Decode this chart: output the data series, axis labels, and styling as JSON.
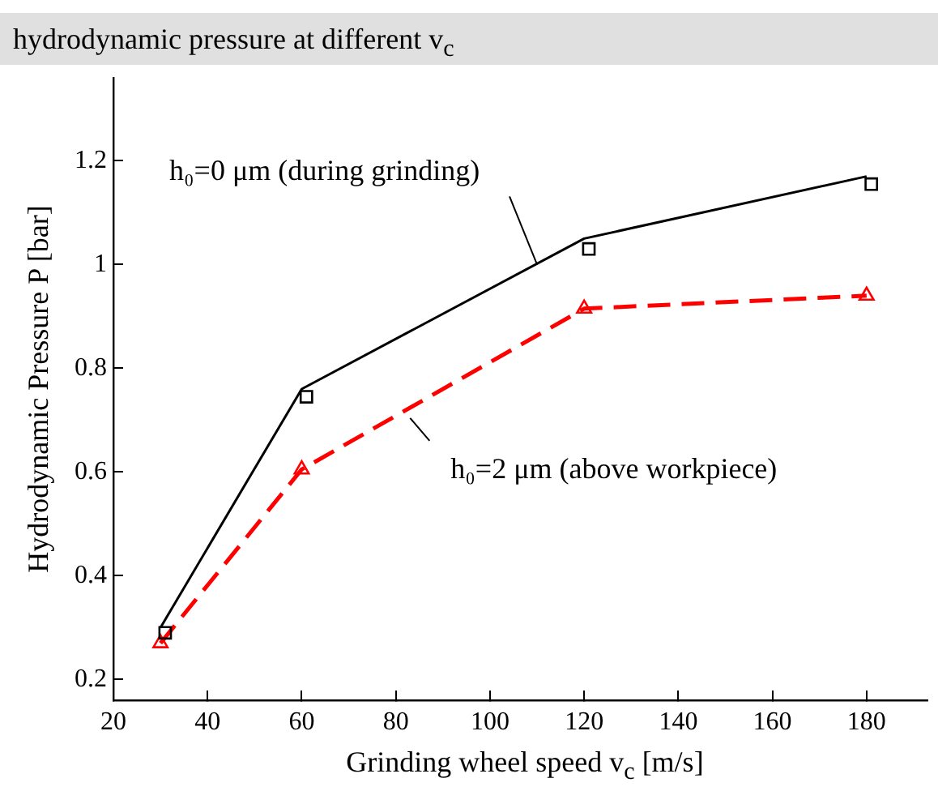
{
  "chart_data": {
    "type": "line",
    "title": "hydrodynamic pressure at different v$_{c}$",
    "xlabel": "Grinding wheel speed v$_{c}$ [m/s]",
    "ylabel": "Hydrodynamic Pressure  P [bar]",
    "xlim": [
      20,
      193
    ],
    "xticks": [
      20,
      40,
      60,
      80,
      100,
      120,
      140,
      160,
      180
    ],
    "ylim": [
      0.16,
      1.36
    ],
    "yticks": [
      0.2,
      0.4,
      0.6,
      0.8,
      1,
      1.2
    ],
    "grid": false,
    "legend": false,
    "series": [
      {
        "type": "line",
        "color": "#000000",
        "marker": "none",
        "line_style": "solid",
        "x": [
          30,
          60,
          120,
          180
        ],
        "values": [
          0.3,
          0.76,
          1.05,
          1.17
        ]
      },
      {
        "type": "scatter",
        "color": "#000000",
        "marker": "square",
        "x": [
          31,
          61,
          121,
          181
        ],
        "values": [
          0.29,
          0.745,
          1.03,
          1.155
        ]
      },
      {
        "type": "line",
        "color": "#ff0000",
        "marker": "triangle",
        "line_style": "dashed",
        "x": [
          30,
          60,
          120,
          180
        ],
        "values": [
          0.27,
          0.605,
          0.915,
          0.94
        ]
      }
    ],
    "annotations": [
      {
        "text": "h₀=0 μm (during grinding)",
        "x": 110,
        "y": 1.0
      },
      {
        "text": "h₀=2 μm (above workpiece)",
        "x": 82,
        "y": 0.715
      }
    ]
  }
}
